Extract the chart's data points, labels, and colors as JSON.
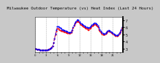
{
  "title": "Milwaukee Outdoor Temperature (vs) Heat Index (Last 24 Hours)",
  "fig_bg": "#c8c8c8",
  "plot_bg": "#ffffff",
  "grid_color": "#888888",
  "temp_color": "#ff0000",
  "hi_color": "#0000ff",
  "ylim": [
    25,
    75
  ],
  "yticks": [
    30,
    40,
    50,
    60,
    70
  ],
  "ytick_labels": [
    "3",
    "4",
    "5",
    "6",
    "7"
  ],
  "n_points": 96,
  "temp_data": [
    30,
    30,
    29,
    29,
    29,
    28,
    28,
    28,
    28,
    28,
    28,
    28,
    28,
    28,
    29,
    29,
    30,
    31,
    32,
    34,
    38,
    44,
    50,
    55,
    58,
    58,
    57,
    56,
    56,
    55,
    55,
    54,
    54,
    53,
    53,
    52,
    52,
    52,
    52,
    53,
    56,
    59,
    62,
    65,
    67,
    68,
    69,
    68,
    66,
    64,
    63,
    62,
    61,
    60,
    59,
    58,
    58,
    57,
    57,
    58,
    59,
    61,
    62,
    63,
    64,
    64,
    63,
    62,
    60,
    57,
    55,
    53,
    51,
    50,
    50,
    50,
    51,
    52,
    54,
    55,
    55,
    54,
    53,
    52,
    51,
    50,
    49,
    48,
    48,
    48,
    49,
    51,
    53,
    56,
    59,
    62
  ],
  "hi_data": [
    30,
    30,
    29,
    29,
    29,
    28,
    28,
    28,
    28,
    28,
    28,
    28,
    28,
    28,
    29,
    29,
    30,
    31,
    32,
    34,
    38,
    44,
    51,
    57,
    61,
    61,
    60,
    59,
    58,
    57,
    57,
    56,
    56,
    55,
    55,
    54,
    53,
    53,
    53,
    54,
    57,
    60,
    63,
    66,
    68,
    70,
    71,
    70,
    68,
    66,
    65,
    64,
    63,
    62,
    61,
    60,
    60,
    59,
    59,
    60,
    61,
    63,
    64,
    65,
    66,
    66,
    65,
    64,
    62,
    59,
    57,
    55,
    53,
    52,
    51,
    51,
    52,
    53,
    55,
    56,
    56,
    55,
    54,
    53,
    52,
    51,
    50,
    49,
    49,
    49,
    50,
    52,
    54,
    57,
    60,
    63
  ],
  "vgrid_x": [
    0,
    12,
    24,
    36,
    48,
    60,
    72,
    84
  ],
  "tick_label_size": 3.5,
  "title_fontsize": 4.2,
  "xtick_every": 4
}
